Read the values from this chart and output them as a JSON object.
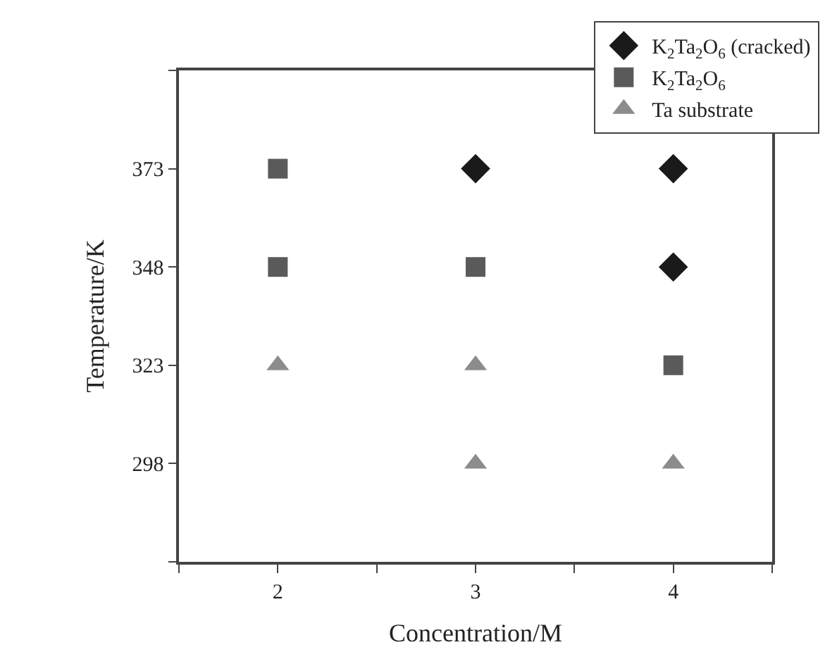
{
  "chart_data": {
    "type": "scatter",
    "xlabel": "Concentration/M",
    "ylabel": "Temperature/K",
    "xlim": [
      1.5,
      4.5
    ],
    "ylim": [
      273,
      398
    ],
    "xticks": [
      {
        "value": 1.5,
        "label": null
      },
      2,
      {
        "value": 2.5,
        "label": null
      },
      3,
      {
        "value": 3.5,
        "label": null
      },
      4,
      {
        "value": 4.5,
        "label": null
      }
    ],
    "yticks": [
      {
        "value": 273,
        "label": null
      },
      298,
      323,
      348,
      373,
      {
        "value": 398,
        "label": null
      }
    ],
    "legend": "top right",
    "series": [
      {
        "name": "K$_{2}$Ta$_{2}$O$_{6}$ (cracked)",
        "color": "#1a1a1a",
        "marker": "diamond",
        "x": [
          3,
          4,
          4
        ],
        "values": [
          373,
          373,
          348
        ]
      },
      {
        "name": "K$_{2}$Ta$_{2}$O$_{6}$",
        "color": "#5a5a5a",
        "marker": "square",
        "x": [
          2,
          2,
          3,
          4
        ],
        "values": [
          373,
          348,
          348,
          323
        ]
      },
      {
        "name": "Ta substrate",
        "color": "#8c8c8c",
        "marker": "triangle",
        "x": [
          2,
          3,
          3,
          4
        ],
        "values": [
          323,
          323,
          298,
          298
        ]
      }
    ]
  }
}
